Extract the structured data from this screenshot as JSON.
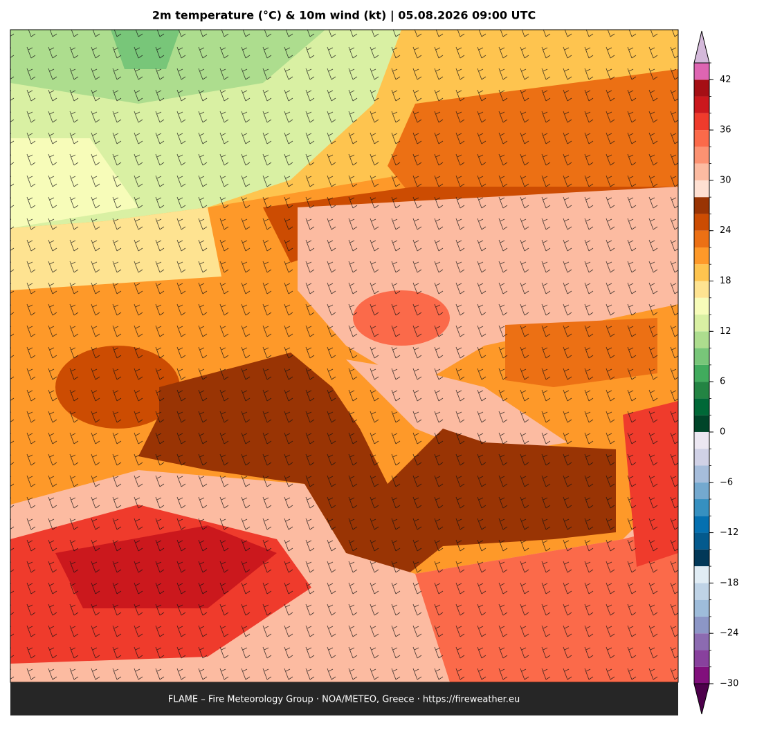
{
  "title": "2m temperature (°C) & 10m wind (kt)  |  05.08.2026 09:00 UTC",
  "footer": "FLAME – Fire Meteorology Group · NOA/METEO, Greece · https://fireweather.eu",
  "colorbar": {
    "lim": [
      -30,
      44
    ],
    "ticks": [
      {
        "value": -30,
        "label": "−30"
      },
      {
        "value": -24,
        "label": "−24"
      },
      {
        "value": -18,
        "label": "−18"
      },
      {
        "value": -12,
        "label": "−12"
      },
      {
        "value": -6,
        "label": "−6"
      },
      0,
      6,
      12,
      18,
      24,
      30,
      36,
      42
    ],
    "levels": [
      -30,
      -28,
      -26,
      -24,
      -22,
      -20,
      -18,
      -16,
      -14,
      -12,
      -10,
      -8,
      -6,
      -4,
      -2,
      0,
      2,
      4,
      6,
      8,
      10,
      12,
      14,
      16,
      18,
      20,
      22,
      24,
      26,
      28,
      30,
      32,
      34,
      36,
      38,
      40,
      42,
      44
    ],
    "colors": [
      "#810f7c",
      "#88419d",
      "#8c6bb1",
      "#8c96c6",
      "#9ebcda",
      "#bfd3e6",
      "#e0ecf4",
      "#023858",
      "#045a8d",
      "#0570b0",
      "#3690c0",
      "#74a9cf",
      "#a6bddb",
      "#d0d1e6",
      "#ece7f2",
      "#004529",
      "#006837",
      "#238443",
      "#41ab5d",
      "#78c679",
      "#addd8e",
      "#d9f0a3",
      "#f7fcb9",
      "#fee391",
      "#fec44f",
      "#fe9929",
      "#ec7014",
      "#cc4c02",
      "#993404",
      "#fee0d2",
      "#fcbba1",
      "#fc9272",
      "#fb6a4a",
      "#ef3b2c",
      "#cb181d",
      "#a50f15",
      "#de65b2"
    ],
    "under_color": "#4d004b",
    "over_color": "#d4b9da"
  }
}
